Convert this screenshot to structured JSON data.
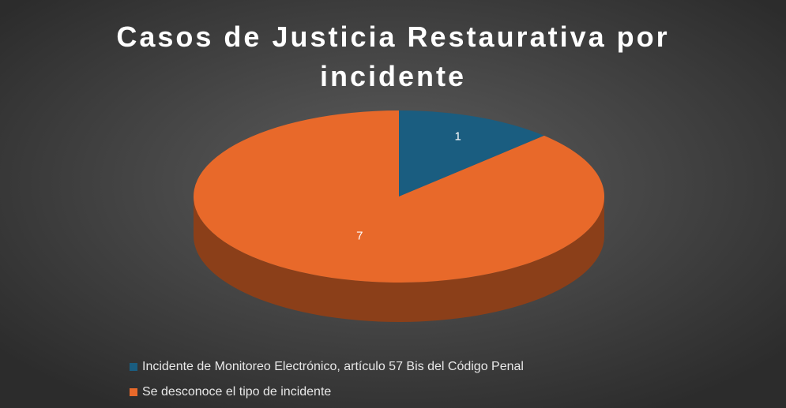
{
  "chart_data": {
    "type": "pie3d",
    "title": "Casos de Justicia Restaurativa por incidente",
    "categories": [
      "Incidente de  Monitoreo Electrónico, artículo 57 Bis del Código Penal",
      "Se desconoce el tipo de incidente"
    ],
    "values": [
      1,
      7
    ],
    "colors": [
      "#1a5d80",
      "#e8692a"
    ],
    "legend": "bottom"
  }
}
